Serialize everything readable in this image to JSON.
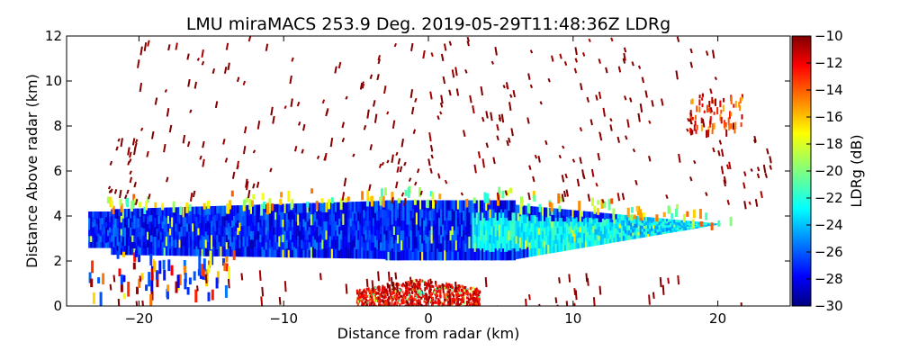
{
  "chart_data": {
    "type": "heatmap",
    "title": "LMU miraMACS 253.9 Deg. 2019-05-29T11:48:36Z  LDRg",
    "xlabel": "Distance from radar (km)",
    "ylabel": "Distance Above radar  (km)",
    "xlim": [
      -25,
      25
    ],
    "ylim": [
      0,
      12
    ],
    "xticks": [
      -20,
      -10,
      0,
      10,
      20
    ],
    "xtick_labels": [
      "−20",
      "−10",
      "0",
      "10",
      "20"
    ],
    "yticks": [
      0,
      2,
      4,
      6,
      8,
      10,
      12
    ],
    "ytick_labels": [
      "0",
      "2",
      "4",
      "6",
      "8",
      "10",
      "12"
    ],
    "grid": false,
    "colorbar": {
      "label": "LDRg (dB)",
      "range": [
        -30,
        -10
      ],
      "ticks": [
        -10,
        -12,
        -14,
        -16,
        -18,
        -20,
        -22,
        -24,
        -26,
        -28,
        -30
      ],
      "tick_labels": [
        "−10",
        "−12",
        "−14",
        "−16",
        "−18",
        "−20",
        "−22",
        "−24",
        "−26",
        "−28",
        "−30"
      ],
      "colormap": "jet"
    },
    "regions": [
      {
        "name": "main-cloud-layer",
        "x_range": [
          -23.5,
          21
        ],
        "height_range_km": [
          2.0,
          4.8
        ],
        "ldr_db": -27,
        "description": "dense cloud band"
      },
      {
        "name": "melting-layer-edge",
        "x_range": [
          5,
          21
        ],
        "height_range_km": [
          2.2,
          3.6
        ],
        "ldr_db": -23
      },
      {
        "name": "surface-clutter",
        "x_range": [
          -5,
          3.5
        ],
        "height_range_km": [
          0,
          1.2
        ],
        "ldr_db": -11
      },
      {
        "name": "upper-speckle",
        "x_range": [
          -22,
          24
        ],
        "height_range_km": [
          4.5,
          12
        ],
        "ldr_db": -10
      },
      {
        "name": "upper-right-cell",
        "x_range": [
          18,
          22
        ],
        "height_range_km": [
          7.8,
          9.5
        ],
        "ldr_db": -14
      }
    ]
  }
}
